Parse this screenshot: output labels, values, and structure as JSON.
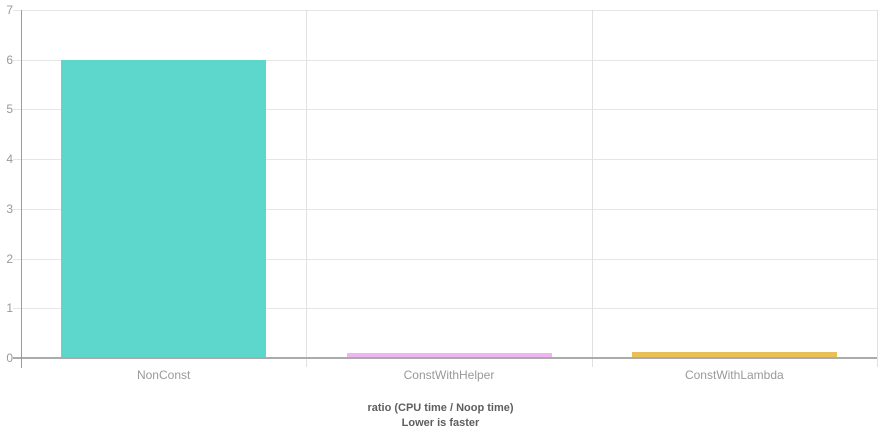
{
  "chart_data": {
    "type": "bar",
    "categories": [
      "NonConst",
      "ConstWithHelper",
      "ConstWithLambda"
    ],
    "values": [
      6.0,
      0.11,
      0.13
    ],
    "bar_colors": [
      "#5dd7cb",
      "#eeb5f0",
      "#e9c057"
    ],
    "title": "",
    "xlabel": "ratio (CPU time / Noop time)",
    "ylabel": "",
    "ylim": [
      0,
      7
    ],
    "y_ticks": [
      0,
      1,
      2,
      3,
      4,
      5,
      6,
      7
    ],
    "grid": true,
    "legend": "none",
    "caption_lines": [
      "ratio (CPU time / Noop time)",
      "Lower is faster"
    ]
  },
  "colors": {
    "background": "#ffffff",
    "h_gridline": "#e6e6e6",
    "v_gridline": "#e0e0e0",
    "baseline": "#ababab",
    "y_axis": "#9b9b9b",
    "tick_label": "#999999",
    "caption": "#5e5e5e"
  }
}
